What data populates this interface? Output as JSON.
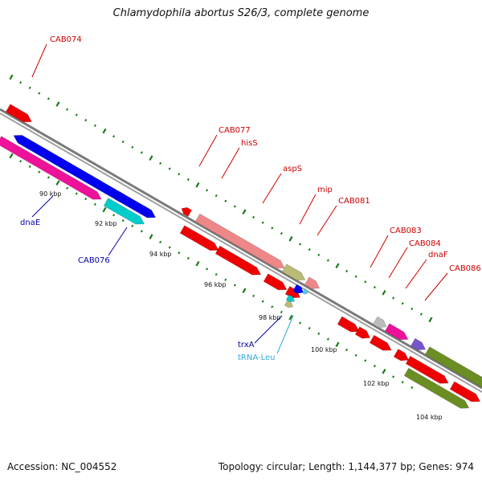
{
  "title": "Chlamydophila abortus S26/3, complete genome",
  "footer": {
    "accession": "Accession: NC_004552",
    "stats": "Topology: circular; Length: 1,144,377 bp; Genes: 974"
  },
  "tick_labels": [
    "90 kbp",
    "92 kbp",
    "94 kbp",
    "96 kbp",
    "98 kbp",
    "100 kbp",
    "102 kbp",
    "104 kbp"
  ],
  "gene_labels": [
    {
      "text": "CAB074",
      "color": "#cc0000"
    },
    {
      "text": "CAB077",
      "color": "#cc0000"
    },
    {
      "text": "hisS",
      "color": "#cc0000"
    },
    {
      "text": "aspS",
      "color": "#cc0000"
    },
    {
      "text": "mip",
      "color": "#cc0000"
    },
    {
      "text": "CAB081",
      "color": "#cc0000"
    },
    {
      "text": "CAB083",
      "color": "#cc0000"
    },
    {
      "text": "CAB084",
      "color": "#cc0000"
    },
    {
      "text": "dnaF",
      "color": "#cc0000"
    },
    {
      "text": "CAB086",
      "color": "#cc0000"
    },
    {
      "text": "dnaE",
      "color": "#0000aa"
    },
    {
      "text": "CAB076",
      "color": "#0000aa"
    },
    {
      "text": "trxA",
      "color": "#0000aa"
    },
    {
      "text": "tRNA-Leu",
      "color": "#33aadd"
    }
  ],
  "colors": {
    "backbone": "#8a8a8a",
    "tick": "#1a7a1a",
    "cds_red": "#ee0000",
    "cds_blue": "#0000ee",
    "cds_magenta": "#ee1199",
    "cds_cyan": "#00cccc",
    "cds_salmon": "#ee8888",
    "cds_olive": "#bbbb77",
    "cds_green": "#6b8e23",
    "cds_grey": "#bbbbbb",
    "cds_purple": "#7755cc",
    "trna": "#55ccee"
  }
}
